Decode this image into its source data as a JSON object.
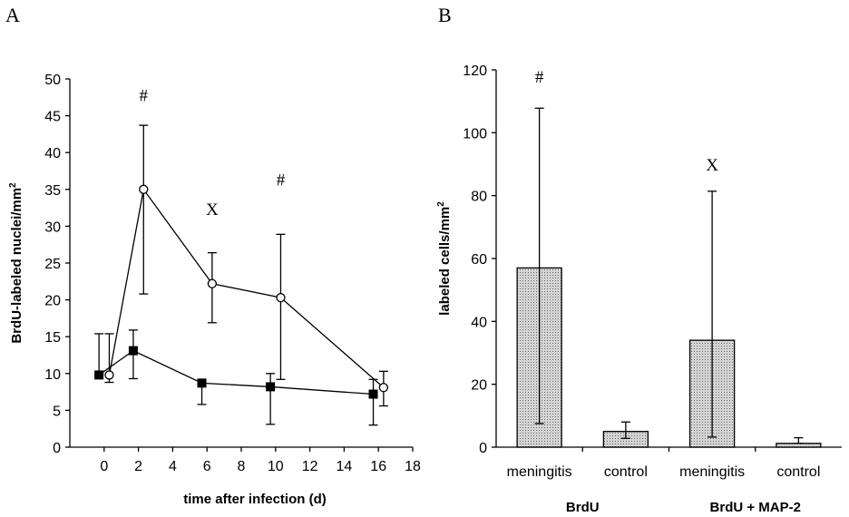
{
  "panels": {
    "a": "A",
    "b": "B"
  },
  "chart_data": [
    {
      "type": "line",
      "panel": "A",
      "xlabel": "time after infection (d)",
      "ylabel": "BrdU-labeled nuclei/mm",
      "ylabel_sup": "2",
      "xlim": [
        -2,
        18
      ],
      "ylim": [
        0,
        50
      ],
      "xticks": [
        0,
        2,
        4,
        6,
        8,
        10,
        12,
        14,
        16,
        18
      ],
      "yticks": [
        0,
        5,
        10,
        15,
        20,
        25,
        30,
        35,
        40,
        45,
        50
      ],
      "series": [
        {
          "marker": "open-circle",
          "x": [
            0.3,
            2.3,
            6.3,
            10.3,
            16.3
          ],
          "y": [
            9.8,
            35.0,
            22.2,
            20.3,
            8.1
          ],
          "err_low": [
            1.0,
            14.2,
            5.3,
            11.1,
            2.5
          ],
          "err_high": [
            5.6,
            8.7,
            4.2,
            8.6,
            2.2
          ]
        },
        {
          "marker": "filled-square",
          "x": [
            -0.3,
            1.7,
            5.7,
            9.7,
            15.7
          ],
          "y": [
            9.8,
            13.1,
            8.7,
            8.2,
            7.2
          ],
          "err_low": [
            0.0,
            3.8,
            2.9,
            5.1,
            4.2
          ],
          "err_high": [
            5.6,
            2.8,
            0.0,
            1.8,
            2.0
          ]
        }
      ],
      "annotations": [
        {
          "text": "#",
          "x": 2.3,
          "y": 47
        },
        {
          "text": "X",
          "x": 6.3,
          "y": 31.5
        },
        {
          "text": "#",
          "x": 10.3,
          "y": 35.5
        }
      ]
    },
    {
      "type": "bar",
      "panel": "B",
      "ylabel": "labeled cells/mm",
      "ylabel_sup": "2",
      "ylim": [
        0,
        120
      ],
      "yticks": [
        0,
        20,
        40,
        60,
        80,
        100,
        120
      ],
      "categories": [
        "meningitis",
        "control",
        "meningitis",
        "control"
      ],
      "groups": [
        {
          "label": "BrdU",
          "categories": [
            0,
            1
          ]
        },
        {
          "label": "BrdU + MAP-2",
          "categories": [
            2,
            3
          ]
        }
      ],
      "values": [
        57,
        5,
        34,
        1.2
      ],
      "err_low": [
        49.5,
        2.2,
        30.8,
        0
      ],
      "err_high": [
        50.8,
        3.0,
        47.4,
        1.8
      ],
      "annotations": [
        {
          "text": "#",
          "bar": 0,
          "y": 116
        },
        {
          "text": "X",
          "bar": 2,
          "y": 88
        }
      ]
    }
  ]
}
